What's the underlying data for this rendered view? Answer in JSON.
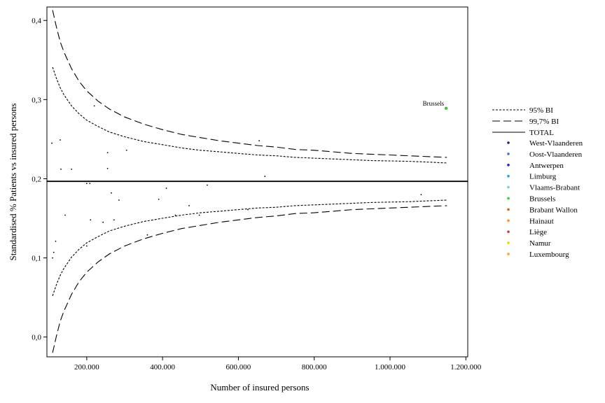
{
  "chart_data": {
    "type": "scatter",
    "title": "",
    "xlabel": "Number of insured persons",
    "ylabel": "Standardised % Patients vs insured persons",
    "xlim": [
      95000,
      1205000
    ],
    "ylim": [
      -0.025,
      0.417
    ],
    "xticks": [
      200000,
      400000,
      600000,
      800000,
      1000000,
      1200000
    ],
    "xtick_labels": [
      "200.000",
      "400.000",
      "600.000",
      "800.000",
      "1.000.000",
      "1.200.000"
    ],
    "yticks": [
      0.0,
      0.1,
      0.2,
      0.3,
      0.4
    ],
    "ytick_labels": [
      "0,0",
      "0,1",
      "0,2",
      "0,3",
      "0,4"
    ],
    "grid": false,
    "legend_position": "right",
    "total": 0.1967,
    "x_curve": [
      110000,
      120000,
      130000,
      140000,
      160000,
      180000,
      200000,
      230000,
      260000,
      300000,
      350000,
      400000,
      450000,
      500000,
      550000,
      600000,
      650000,
      700000,
      750000,
      800000,
      850000,
      900000,
      950000,
      1000000,
      1050000,
      1100000,
      1150000
    ],
    "lines": [
      {
        "name": "95% BI",
        "style": "dotted",
        "upper": [
          0.341,
          0.327,
          0.315,
          0.306,
          0.292,
          0.282,
          0.274,
          0.266,
          0.259,
          0.253,
          0.247,
          0.243,
          0.239,
          0.236,
          0.234,
          0.232,
          0.23,
          0.229,
          0.227,
          0.226,
          0.225,
          0.224,
          0.223,
          0.2225,
          0.222,
          0.221,
          0.22
        ],
        "lower": [
          0.052,
          0.066,
          0.078,
          0.087,
          0.101,
          0.111,
          0.119,
          0.127,
          0.134,
          0.14,
          0.146,
          0.15,
          0.154,
          0.157,
          0.159,
          0.161,
          0.163,
          0.164,
          0.166,
          0.167,
          0.168,
          0.169,
          0.17,
          0.1705,
          0.171,
          0.172,
          0.173
        ]
      },
      {
        "name": "99,7% BI",
        "style": "dashed",
        "upper": [
          0.413,
          0.392,
          0.373,
          0.36,
          0.339,
          0.323,
          0.311,
          0.298,
          0.288,
          0.278,
          0.269,
          0.262,
          0.256,
          0.252,
          0.248,
          0.245,
          0.242,
          0.24,
          0.237,
          0.236,
          0.234,
          0.232,
          0.231,
          0.23,
          0.229,
          0.228,
          0.227
        ],
        "lower": [
          -0.02,
          0.001,
          0.02,
          0.033,
          0.054,
          0.07,
          0.082,
          0.095,
          0.105,
          0.115,
          0.124,
          0.131,
          0.137,
          0.141,
          0.145,
          0.148,
          0.151,
          0.153,
          0.156,
          0.157,
          0.159,
          0.161,
          0.162,
          0.163,
          0.164,
          0.165,
          0.166
        ]
      },
      {
        "name": "TOTAL",
        "style": "solid"
      }
    ],
    "series": [
      {
        "name": "West-Vlaanderen",
        "color": "#1a237e",
        "points": []
      },
      {
        "name": "Oost-Vlaanderen",
        "color": "#3f6fd8",
        "points": []
      },
      {
        "name": "Antwerpen",
        "color": "#1e1ee0",
        "points": []
      },
      {
        "name": "Limburg",
        "color": "#2f9fe0",
        "points": []
      },
      {
        "name": "Vlaams-Brabant",
        "color": "#7fc8ec",
        "points": []
      },
      {
        "name": "Brussels",
        "color": "#3cc83c",
        "points": [
          [
            1148000,
            0.289
          ]
        ]
      },
      {
        "name": "Brabant Wallon",
        "color": "#c86428",
        "points": []
      },
      {
        "name": "Hainaut",
        "color": "#ff8c1e",
        "points": []
      },
      {
        "name": "Liège",
        "color": "#c84630",
        "points": []
      },
      {
        "name": "Namur",
        "color": "#f0d000",
        "points": []
      },
      {
        "name": "Luxembourg",
        "color": "#ffa020",
        "points": []
      }
    ],
    "other_points": [
      [
        108000,
        0.245
      ],
      [
        130000,
        0.249
      ],
      [
        132000,
        0.212
      ],
      [
        160000,
        0.212
      ],
      [
        220000,
        0.292
      ],
      [
        255000,
        0.233
      ],
      [
        255000,
        0.213
      ],
      [
        305000,
        0.236
      ],
      [
        655000,
        0.248
      ],
      [
        670000,
        0.203
      ],
      [
        200000,
        0.194
      ],
      [
        208000,
        0.194
      ],
      [
        265000,
        0.182
      ],
      [
        285000,
        0.173
      ],
      [
        410000,
        0.188
      ],
      [
        390000,
        0.174
      ],
      [
        518000,
        0.192
      ],
      [
        470000,
        0.166
      ],
      [
        625000,
        0.161
      ],
      [
        1082000,
        0.18
      ],
      [
        143000,
        0.154
      ],
      [
        210000,
        0.148
      ],
      [
        243000,
        0.145
      ],
      [
        272000,
        0.148
      ],
      [
        434000,
        0.154
      ],
      [
        497000,
        0.154
      ],
      [
        360000,
        0.129
      ],
      [
        118000,
        0.121
      ],
      [
        113000,
        0.107
      ],
      [
        110000,
        0.1
      ],
      [
        200000,
        0.115
      ]
    ],
    "annotations": [
      {
        "text": "Brussels",
        "x": 1148000,
        "y": 0.289
      }
    ]
  },
  "colors": {
    "axis": "#000000",
    "points": "#000000",
    "frame": "#000000"
  }
}
